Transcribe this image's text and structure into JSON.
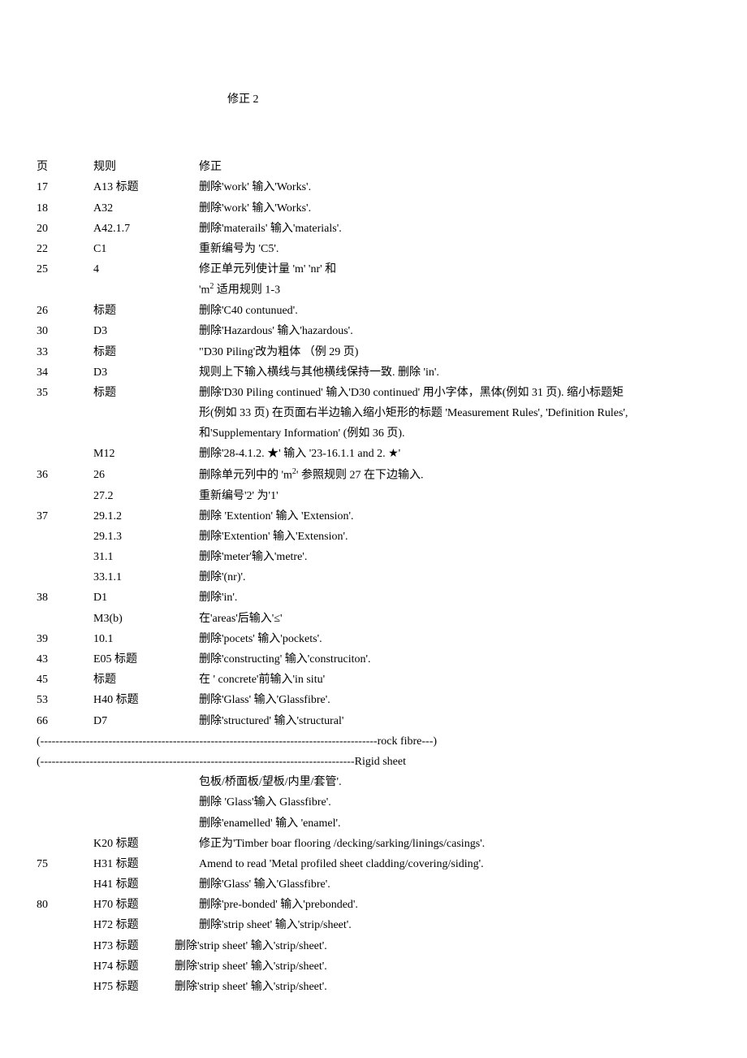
{
  "title": "修正 2",
  "header": {
    "page": "页",
    "rule": "规则",
    "correction": "修正"
  },
  "rows": [
    {
      "page": "17",
      "rule": "A13 标题",
      "correction": "删除'work' 输入'Works'."
    },
    {
      "page": "18",
      "rule": "A32",
      "correction": "删除'work' 输入'Works'."
    },
    {
      "page": "20",
      "rule": "A42.1.7",
      "correction": "删除'materails' 输入'materials'."
    },
    {
      "page": "22",
      "rule": "C1",
      "correction": "重新编号为 'C5'."
    },
    {
      "page": "25",
      "rule": "4",
      "correction": "修正单元列使计量 'm' 'nr' 和"
    },
    {
      "page": "",
      "rule": "",
      "correction": "'m² 适用规则 1-3",
      "hasSup": true
    },
    {
      "page": "26",
      "rule": "标题",
      "correction": "删除'C40 contunued'."
    },
    {
      "page": "30",
      "rule": "D3",
      "correction": "删除'Hazardous' 输入'hazardous'."
    },
    {
      "page": "33",
      "rule": "标题",
      "correction": "\"D30 Piling'改为粗体  （例 29 页)"
    },
    {
      "page": "34",
      "rule": "D3",
      "correction": "规则上下输入横线与其他横线保持一致. 删除 'in'."
    },
    {
      "page": "35",
      "rule": "标题",
      "correction": "删除'D30 Piling continued' 输入'D30 continued' 用小字体，黑体(例如 31 页). 缩小标题矩"
    },
    {
      "page": "",
      "rule": "",
      "correction": " 形(例如 33 页) 在页面右半边输入缩小矩形的标题 'Measurement Rules', 'Definition Rules',"
    },
    {
      "page": "",
      "rule": "",
      "correction": " 和'Supplementary Information' (例如 36 页)."
    },
    {
      "page": "",
      "rule": "M12",
      "correction": "删除'28-4.1.2. ★'   输入 '23-16.1.1 and 2. ★'"
    },
    {
      "page": "36",
      "rule": "26",
      "correction": " 删除单元列中的 'm²' 参照规则 27 在下边输入.",
      "hasSup2": true
    },
    {
      "page": "",
      "rule": "27.2",
      "correction": "重新编号'2' 为'1'"
    },
    {
      "page": "37",
      "rule": "29.1.2",
      "correction": " 删除 'Extention' 输入 'Extension'."
    },
    {
      "page": "",
      "rule": "29.1.3",
      "correction": " 删除'Extention' 输入'Extension'."
    },
    {
      "page": "",
      "rule": "31.1",
      "correction": "删除'meter'输入'metre'."
    },
    {
      "page": "",
      "rule": "33.1.1",
      "correction": "删除'(nr)'."
    },
    {
      "page": "38",
      "rule": "D1",
      "correction": "删除'in'."
    },
    {
      "page": "",
      "rule": "M3(b)",
      "correction": "在'areas'后输入'≤'"
    },
    {
      "page": "39",
      "rule": "10.1",
      "correction": "删除'pocets' 输入'pockets'."
    },
    {
      "page": "43",
      "rule": "E05 标题",
      "correction": "删除'constructing' 输入'construciton'."
    },
    {
      "page": "45",
      "rule": "标题",
      "correction": "在 ' concrete'前输入'in situ'"
    },
    {
      "page": "53",
      "rule": "H40 标题",
      "correction": "删除'Glass' 输入'Glassfibre'."
    },
    {
      "page": "66",
      "rule": "D7",
      "correction": "删除'structured' 输入'structural'"
    }
  ],
  "dashLines": [
    {
      "prefix": "(",
      "dashes": "-----------------------------------------------------------------------------------------",
      "suffix": "rock fibre---)"
    },
    {
      "prefix": "(",
      "dashes": "-----------------------------------------------------------------------------------",
      "suffix": "Rigid sheet"
    }
  ],
  "indentedRows": [
    {
      "text": "包板/桥面板/望板/内里/套管'.",
      "class": "indent-1"
    },
    {
      "text": "删除 'Glass'输入 Glassfibre'.",
      "class": "indent-1"
    },
    {
      "text": "删除'enamelled' 输入 'enamel'.",
      "class": "indent-1"
    }
  ],
  "rows2": [
    {
      "page": "",
      "rule": "K20 标题",
      "correction": "修正为'Timber boar flooring /decking/sarking/linings/casings'."
    },
    {
      "page": "75",
      "rule": "H31 标题",
      "correction": "Amend to read 'Metal profiled sheet cladding/covering/siding'."
    },
    {
      "page": "",
      "rule": "H41 标题",
      "correction": "删除'Glass' 输入'Glassfibre'."
    },
    {
      "page": "80",
      "rule": "H70 标题",
      "correction": "删除'pre-bonded' 输入'prebonded'."
    },
    {
      "page": "",
      "rule": "H72 标题",
      "correction": " 删除'strip sheet' 输入'strip/sheet'."
    }
  ],
  "rows3": [
    {
      "page": "",
      "rule": "H73 标题",
      "correction": "删除'strip sheet' 输入'strip/sheet'."
    },
    {
      "page": "",
      "rule": "H74 标题",
      "correction": "删除'strip sheet' 输入'strip/sheet'."
    },
    {
      "page": "",
      "rule": "H75 标题",
      "correction": "删除'strip sheet' 输入'strip/sheet'."
    }
  ]
}
